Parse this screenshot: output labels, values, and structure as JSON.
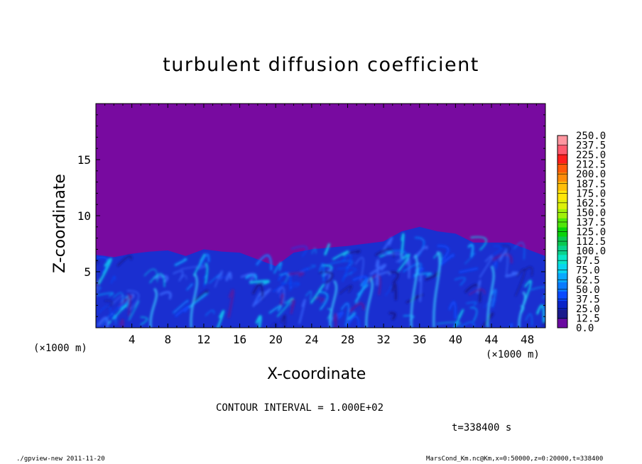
{
  "chart_data": {
    "type": "heatmap",
    "title": "turbulent diffusion coefficient",
    "xlabel": "X-coordinate",
    "ylabel": "Z-coordinate",
    "x_unit": "(×1000 m)",
    "xlim": [
      0,
      50
    ],
    "ylim": [
      0,
      20
    ],
    "x_ticks": [
      "4",
      "8",
      "12",
      "16",
      "20",
      "24",
      "28",
      "32",
      "36",
      "40",
      "44",
      "48"
    ],
    "x_tick_values": [
      4,
      8,
      12,
      16,
      20,
      24,
      28,
      32,
      36,
      40,
      44,
      48
    ],
    "y_ticks": [
      "5",
      "10",
      "15"
    ],
    "y_tick_values": [
      5,
      10,
      15
    ],
    "colorbar_levels": [
      "0.0",
      "12.5",
      "25.0",
      "37.5",
      "50.0",
      "62.5",
      "75.0",
      "87.5",
      "100.0",
      "112.5",
      "125.0",
      "137.5",
      "150.0",
      "162.5",
      "175.0",
      "187.5",
      "200.0",
      "212.5",
      "225.0",
      "237.5",
      "250.0"
    ],
    "colorbar_colors": [
      "#6a0aa0",
      "#1a1a8c",
      "#0a24c8",
      "#0a4aff",
      "#0a7aff",
      "#0aa8ff",
      "#0ad4f0",
      "#0ae6c8",
      "#0ad28c",
      "#0ac850",
      "#0ad20a",
      "#50e60a",
      "#a0f00a",
      "#dcf00a",
      "#ffe60a",
      "#ffbe0a",
      "#ff8c0a",
      "#ff5a0a",
      "#ff1e1e",
      "#ff5a6e",
      "#ff96a0"
    ],
    "mixed_layer_top_km": [
      [
        0,
        6.5
      ],
      [
        2,
        6.3
      ],
      [
        4,
        6.6
      ],
      [
        6,
        6.8
      ],
      [
        8,
        6.9
      ],
      [
        10,
        6.4
      ],
      [
        12,
        7.0
      ],
      [
        14,
        6.8
      ],
      [
        16,
        6.7
      ],
      [
        18,
        6.1
      ],
      [
        20,
        5.5
      ],
      [
        22,
        6.7
      ],
      [
        24,
        7.0
      ],
      [
        28,
        7.3
      ],
      [
        32,
        7.7
      ],
      [
        34,
        8.6
      ],
      [
        36,
        9.0
      ],
      [
        38,
        8.6
      ],
      [
        40,
        8.4
      ],
      [
        42,
        7.6
      ],
      [
        46,
        7.6
      ],
      [
        48,
        7.0
      ],
      [
        50,
        6.4
      ]
    ]
  },
  "x_unit_right": "(×1000 m)",
  "contour_interval": "CONTOUR INTERVAL = 1.000E+02",
  "time_label": "t=338400 s",
  "footer_left": "./gpview-new   2011-11-20",
  "footer_right": "MarsCond_Km.nc@Km,x=0:50000,z=0:20000,t=338400"
}
